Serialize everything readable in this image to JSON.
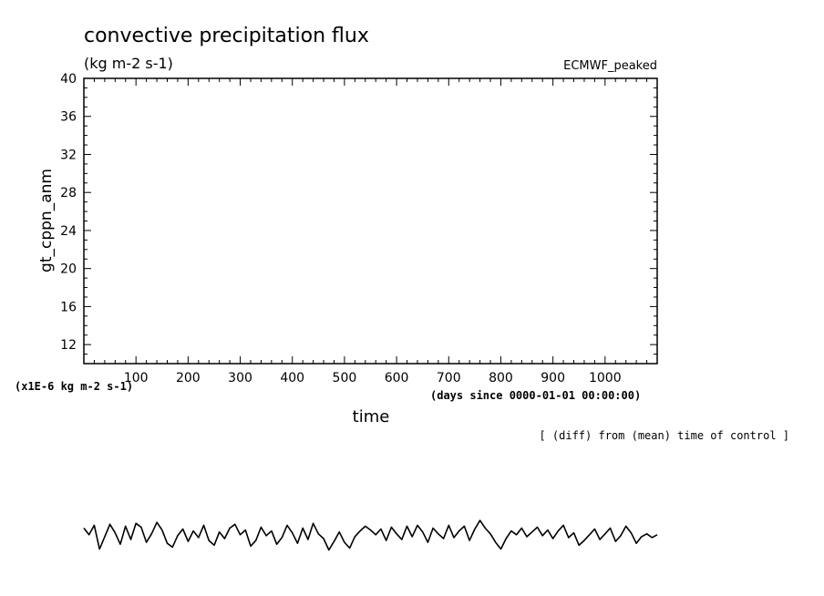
{
  "chart_data": {
    "type": "line",
    "title": "convective precipitation flux",
    "subtitle": "(kg m-2 s-1)",
    "tag": "ECMWF_peaked",
    "ylabel": "gt_cppn_anm",
    "xlabel": "time",
    "x_units": "(days since 0000-01-01 00:00:00)",
    "y_units": "(x1E-6 kg m-2 s-1)",
    "note": "[ (diff) from (mean) time of control ]",
    "xlim": [
      0,
      1100
    ],
    "ylim": [
      10,
      40
    ],
    "x_ticks": [
      100,
      200,
      300,
      400,
      500,
      600,
      700,
      800,
      900,
      1000
    ],
    "y_ticks": [
      12,
      16,
      20,
      24,
      28,
      32,
      36,
      40
    ],
    "grid": false,
    "series": [
      {
        "x": [
          0,
          10,
          20,
          30,
          40,
          50,
          60,
          70,
          80,
          90,
          100,
          110,
          120,
          130,
          140,
          150,
          160,
          170,
          180,
          190,
          200,
          210,
          220,
          230,
          240,
          250,
          260,
          270,
          280,
          290,
          300,
          310,
          320,
          330,
          340,
          350,
          360,
          370,
          380,
          390,
          400,
          410,
          420,
          430,
          440,
          450,
          460,
          470,
          480,
          490,
          500,
          510,
          520,
          530,
          540,
          550,
          560,
          570,
          580,
          590,
          600,
          610,
          620,
          630,
          640,
          650,
          660,
          670,
          680,
          690,
          700,
          710,
          720,
          730,
          740,
          750,
          760,
          770,
          780,
          790,
          800,
          810,
          820,
          830,
          840,
          850,
          860,
          870,
          880,
          890,
          900,
          910,
          920,
          930,
          940,
          950,
          960,
          970,
          980,
          990,
          1000,
          1010,
          1020,
          1030,
          1040,
          1050,
          1060,
          1070,
          1080,
          1090,
          1100
        ],
        "values": [
          -7.3,
          -8.0,
          -7.0,
          -9.5,
          -8.2,
          -6.9,
          -7.8,
          -9.0,
          -7.1,
          -8.5,
          -6.8,
          -7.2,
          -8.8,
          -7.9,
          -6.7,
          -7.5,
          -8.9,
          -9.3,
          -8.1,
          -7.4,
          -8.7,
          -7.6,
          -8.3,
          -7.0,
          -8.6,
          -9.1,
          -7.7,
          -8.4,
          -7.3,
          -6.9,
          -8.0,
          -7.5,
          -9.2,
          -8.6,
          -7.2,
          -8.1,
          -7.6,
          -9.0,
          -8.3,
          -7.0,
          -7.8,
          -8.9,
          -7.3,
          -8.5,
          -6.8,
          -7.9,
          -8.4,
          -9.6,
          -8.7,
          -7.7,
          -8.8,
          -9.4,
          -8.2,
          -7.6,
          -7.1,
          -7.5,
          -8.0,
          -7.4,
          -8.6,
          -7.2,
          -7.9,
          -8.5,
          -7.1,
          -8.2,
          -7.0,
          -7.7,
          -8.8,
          -7.3,
          -7.9,
          -8.4,
          -7.0,
          -8.3,
          -7.6,
          -7.1,
          -8.6,
          -7.4,
          -6.5,
          -7.3,
          -7.9,
          -8.8,
          -9.5,
          -8.4,
          -7.6,
          -8.0,
          -7.3,
          -8.2,
          -7.7,
          -7.2,
          -8.1,
          -7.5,
          -8.4,
          -7.6,
          -7.0,
          -8.3,
          -7.8,
          -9.1,
          -8.6,
          -8.0,
          -7.4,
          -8.5,
          -7.9,
          -7.3,
          -8.7,
          -8.1,
          -7.1,
          -7.8,
          -8.9,
          -8.2,
          -7.9,
          -8.3,
          -8.0
        ]
      }
    ]
  }
}
